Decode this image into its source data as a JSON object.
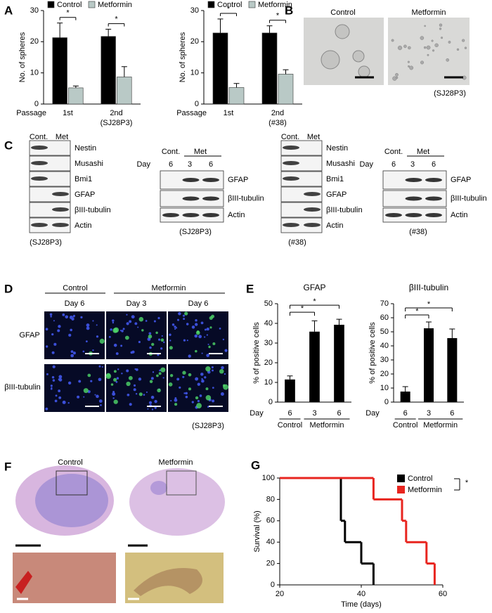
{
  "panel_labels": [
    "A",
    "B",
    "C",
    "D",
    "E",
    "F",
    "G"
  ],
  "chart_data": [
    {
      "type": "bar",
      "y_label": "No. of spheres",
      "x_label": "Passage",
      "categories": [
        "1st",
        "2nd"
      ],
      "cell_line": "(SJ28P3)",
      "series": [
        {
          "name": "Control",
          "color": "#000000",
          "values": [
            21.3,
            21.7
          ],
          "errors": [
            4.7,
            2.3
          ]
        },
        {
          "name": "Metformin",
          "color": "#b9c9c6",
          "values": [
            5.2,
            8.7
          ],
          "errors": [
            0.6,
            3.3
          ]
        }
      ],
      "ylim": [
        0,
        30
      ],
      "yticks": [
        0,
        10,
        20,
        30
      ],
      "significance": "*"
    },
    {
      "type": "bar",
      "y_label": "No. of spheres",
      "x_label": "Passage",
      "categories": [
        "1st",
        "2nd"
      ],
      "cell_line": "(#38)",
      "series": [
        {
          "name": "Control",
          "color": "#000000",
          "values": [
            22.8,
            22.8
          ],
          "errors": [
            4.5,
            2.3
          ]
        },
        {
          "name": "Metformin",
          "color": "#b9c9c6",
          "values": [
            5.3,
            9.6
          ],
          "errors": [
            1.3,
            1.4
          ]
        }
      ],
      "ylim": [
        0,
        30
      ],
      "yticks": [
        0,
        10,
        20,
        30
      ],
      "significance": "*"
    },
    {
      "type": "bar",
      "title": "GFAP",
      "y_label": "% of positive cells",
      "row_label": "Day",
      "categories": [
        "6",
        "3",
        "6"
      ],
      "groups": [
        "Control",
        "Metformin"
      ],
      "values": [
        11.5,
        35.8,
        39.3
      ],
      "errors": [
        1.8,
        5.5,
        2.8
      ],
      "color": "#000000",
      "ylim": [
        0,
        50
      ],
      "yticks": [
        0,
        10,
        20,
        30,
        40,
        50
      ],
      "significance": "*"
    },
    {
      "type": "bar",
      "title": "βIII-tubulin",
      "y_label": "% of positive cells",
      "row_label": "Day",
      "categories": [
        "6",
        "3",
        "6"
      ],
      "groups": [
        "Control",
        "Metformin"
      ],
      "values": [
        7.5,
        52.5,
        45.5
      ],
      "errors": [
        3.5,
        4.5,
        6.5
      ],
      "color": "#000000",
      "ylim": [
        0,
        70
      ],
      "yticks": [
        0,
        10,
        20,
        30,
        40,
        50,
        60,
        70
      ],
      "significance": "*"
    },
    {
      "type": "step",
      "x_label": "Time (days)",
      "y_label": "Survival (%)",
      "series": [
        {
          "name": "Control",
          "color": "#000000",
          "x": [
            20,
            35,
            36,
            40,
            43
          ],
          "values": [
            100,
            60,
            40,
            20,
            0
          ]
        },
        {
          "name": "Metformin",
          "color": "#e8251f",
          "x": [
            20,
            43,
            50,
            51,
            56,
            58
          ],
          "values": [
            100,
            80,
            60,
            40,
            20,
            0
          ]
        }
      ],
      "xlim": [
        20,
        60
      ],
      "xticks": [
        20,
        40,
        60
      ],
      "ylim": [
        0,
        100
      ],
      "yticks": [
        0,
        20,
        40,
        60,
        80,
        100
      ],
      "significance": "*"
    }
  ],
  "panel_b": {
    "titles": [
      "Control",
      "Metformin"
    ],
    "cell_line": "(SJ28P3)"
  },
  "panel_c": {
    "blots": [
      {
        "lanes": [
          "Cont.",
          "Met"
        ],
        "proteins": [
          "Nestin",
          "Musashi",
          "Bmi1",
          "GFAP",
          "βIII-tubulin",
          "Actin"
        ],
        "cell_line": "(SJ28P3)"
      },
      {
        "lanes": [
          "Cont.",
          "Met"
        ],
        "day_label": "Day",
        "days": [
          "6",
          "3",
          "6"
        ],
        "proteins": [
          "GFAP",
          "βIII-tubulin",
          "Actin"
        ],
        "cell_line": "(SJ28P3)"
      },
      {
        "lanes": [
          "Cont.",
          "Met"
        ],
        "proteins": [
          "Nestin",
          "Musashi",
          "Bmi1",
          "GFAP",
          "βIII-tubulin",
          "Actin"
        ],
        "cell_line": "(#38)"
      },
      {
        "lanes": [
          "Cont.",
          "Met"
        ],
        "day_label": "Day",
        "days": [
          "6",
          "3",
          "6"
        ],
        "proteins": [
          "GFAP",
          "βIII-tubulin",
          "Actin"
        ],
        "cell_line": "(#38)"
      }
    ]
  },
  "panel_d": {
    "groups": [
      "Control",
      "Metformin"
    ],
    "days": [
      "Day 6",
      "Day 3",
      "Day 6"
    ],
    "rows": [
      "GFAP",
      "βIII-tubulin"
    ],
    "cell_line": "(SJ28P3)"
  },
  "panel_f": {
    "titles": [
      "Control",
      "Metformin"
    ]
  }
}
